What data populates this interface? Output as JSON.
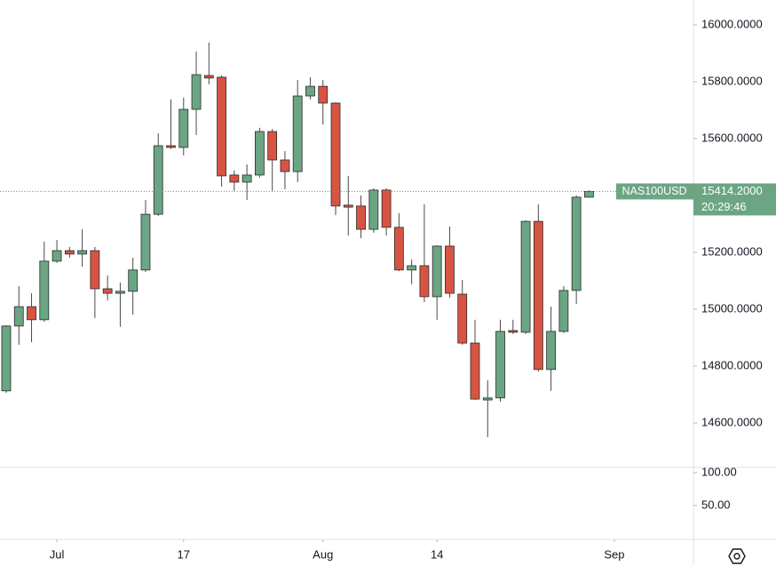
{
  "chart_data": {
    "type": "candlestick",
    "symbol": "NAS100USD",
    "last_price_label": "15414.2000",
    "countdown": "20:29:46",
    "up_color": "#6ba583",
    "down_color": "#d75442",
    "open": [
      14713,
      14941,
      15009,
      14963,
      15169,
      15206,
      15194,
      15206,
      15072,
      15056,
      15063,
      15138,
      15334,
      15575,
      15569,
      15703,
      15822,
      15816,
      15472,
      15447,
      15472,
      15625,
      15525,
      15484,
      15750,
      15784,
      15725,
      15366,
      15363,
      15281,
      15419,
      15288,
      15138,
      15153,
      15044,
      15222,
      15053,
      14881,
      14681,
      14688,
      14925,
      14919,
      15309,
      14788,
      14922,
      15066,
      15394
    ],
    "high": [
      14944,
      15081,
      15056,
      15238,
      15244,
      15219,
      15281,
      15219,
      15119,
      15094,
      15181,
      15384,
      15619,
      15738,
      15744,
      15906,
      15938,
      15822,
      15488,
      15509,
      15638,
      15634,
      15556,
      15806,
      15816,
      15806,
      15728,
      15469,
      15400,
      15425,
      15425,
      15338,
      15175,
      15369,
      15225,
      15291,
      15103,
      14963,
      14750,
      14963,
      14963,
      15313,
      15369,
      15009,
      15081,
      15400,
      15419
    ],
    "low": [
      14706,
      14875,
      14884,
      14956,
      15163,
      15181,
      15150,
      14969,
      15031,
      14938,
      14981,
      15131,
      15328,
      15563,
      15541,
      15613,
      15791,
      15431,
      15416,
      15384,
      15463,
      15416,
      15422,
      15447,
      15738,
      15650,
      15331,
      15259,
      15250,
      15269,
      15259,
      15134,
      15088,
      15025,
      14963,
      15041,
      14875,
      14681,
      14550,
      14675,
      14913,
      14913,
      14781,
      14713,
      14916,
      15019,
      15394
    ],
    "close": [
      14941,
      15009,
      14963,
      15169,
      15206,
      15194,
      15206,
      15072,
      15056,
      15063,
      15138,
      15334,
      15575,
      15569,
      15703,
      15825,
      15813,
      15469,
      15447,
      15472,
      15625,
      15525,
      15484,
      15750,
      15784,
      15725,
      15363,
      15359,
      15281,
      15419,
      15288,
      15138,
      15153,
      15044,
      15222,
      15056,
      14881,
      14684,
      14688,
      14922,
      14919,
      15309,
      14788,
      14922,
      15066,
      15394,
      15414.2
    ],
    "xlim": [
      -0.49,
      54.24
    ],
    "xticks": [
      {
        "value": 4,
        "label": "Jul"
      },
      {
        "value": 14,
        "label": "17"
      },
      {
        "value": 25,
        "label": "Aug"
      },
      {
        "value": 34,
        "label": "14"
      },
      {
        "value": 48,
        "label": "Sep"
      }
    ],
    "ylim": [
      14443.75,
      16087.5
    ],
    "yticks": [
      {
        "value": 14600,
        "label": "14600.0000"
      },
      {
        "value": 14800,
        "label": "14800.0000"
      },
      {
        "value": 15000,
        "label": "15000.0000"
      },
      {
        "value": 15200,
        "label": "15200.0000"
      },
      {
        "value": 15600,
        "label": "15600.0000"
      },
      {
        "value": 15800,
        "label": "15800.0000"
      },
      {
        "value": 16000,
        "label": "16000.0000"
      }
    ],
    "lower_pane": {
      "ylim": [
        -1.4,
        108.1
      ],
      "yticks": [
        {
          "value": 50,
          "label": "50.00"
        },
        {
          "value": 100,
          "label": "100.00"
        }
      ]
    }
  }
}
